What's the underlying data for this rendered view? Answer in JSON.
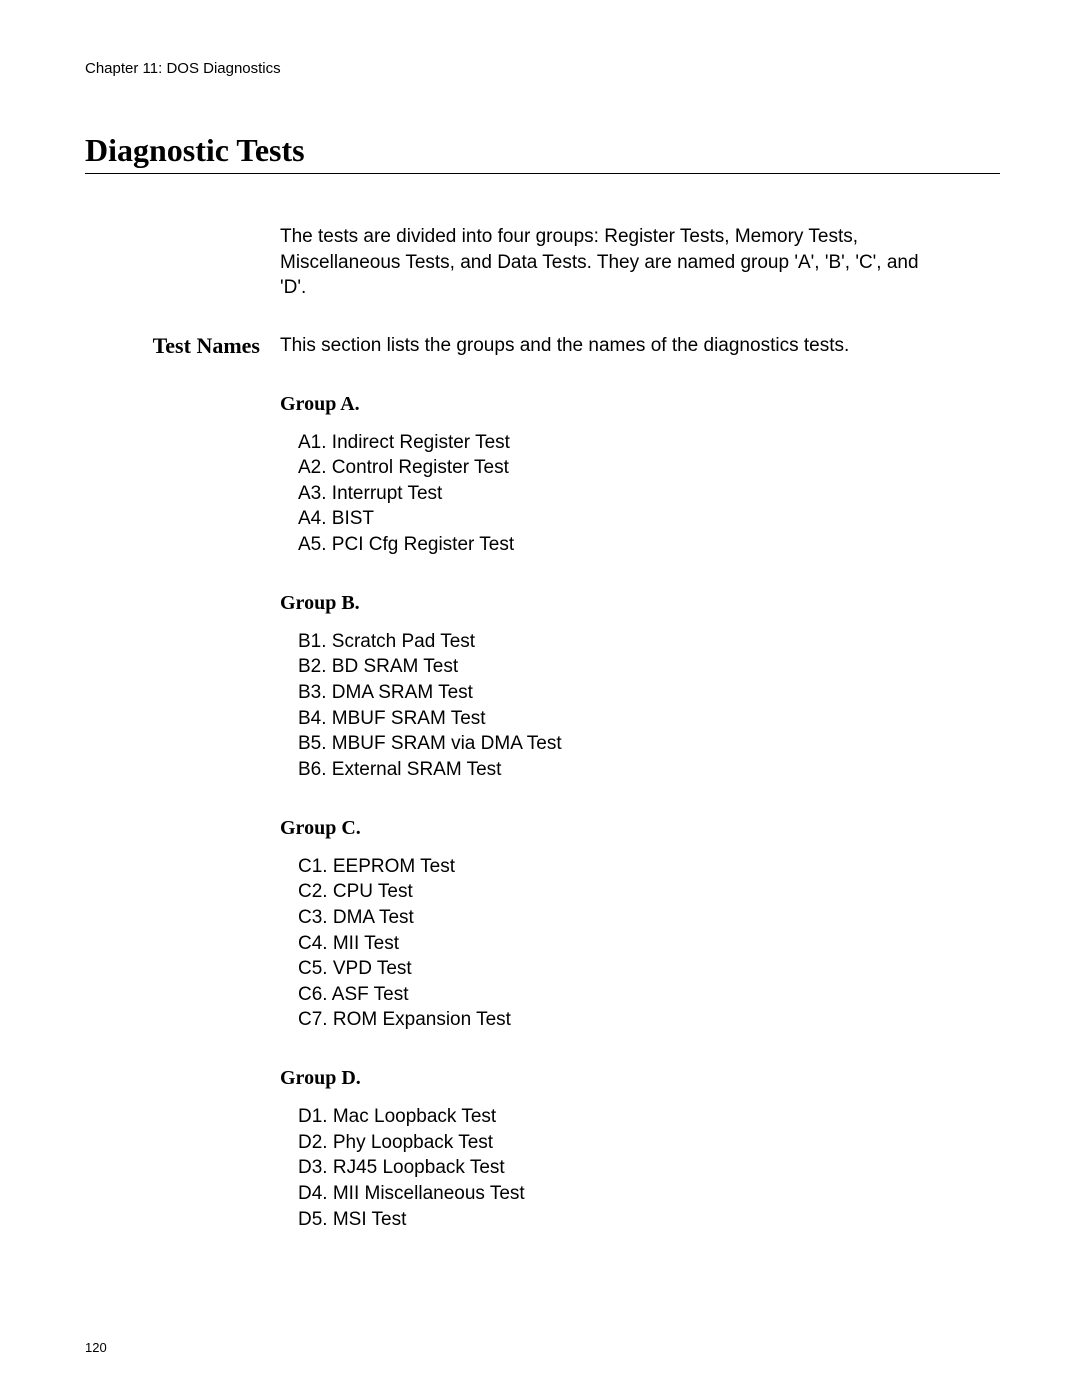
{
  "chapter_header": "Chapter 11: DOS Diagnostics",
  "main_title": "Diagnostic Tests",
  "intro": "The tests are divided into four groups: Register Tests, Memory Tests, Miscellaneous Tests, and Data Tests. They are named group 'A', 'B', 'C', and 'D'.",
  "side_heading": "Test Names",
  "section_intro": "This section lists the groups and the names of the diagnostics tests.",
  "groups": [
    {
      "title": "Group A.",
      "items": [
        "A1. Indirect Register Test",
        "A2. Control Register Test",
        "A3. Interrupt Test",
        "A4. BIST",
        "A5. PCI Cfg Register Test"
      ]
    },
    {
      "title": "Group B.",
      "items": [
        "B1. Scratch Pad Test",
        "B2. BD SRAM Test",
        "B3. DMA SRAM Test",
        "B4. MBUF SRAM Test",
        "B5. MBUF SRAM via DMA Test",
        "B6. External SRAM Test"
      ]
    },
    {
      "title": "Group C.",
      "items": [
        "C1. EEPROM Test",
        "C2. CPU Test",
        "C3. DMA Test",
        "C4. MII Test",
        "C5. VPD Test",
        "C6. ASF Test",
        "C7. ROM Expansion Test"
      ]
    },
    {
      "title": "Group D.",
      "items": [
        "D1. Mac Loopback Test",
        "D2. Phy Loopback Test",
        "D3. RJ45 Loopback Test",
        "D4. MII Miscellaneous Test",
        "D5. MSI Test"
      ]
    }
  ],
  "page_number": "120"
}
